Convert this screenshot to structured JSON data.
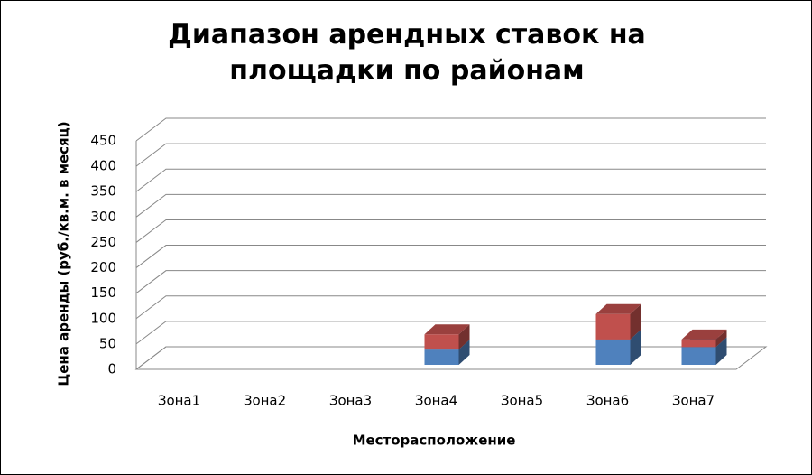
{
  "chart_data": {
    "type": "bar3d_stacked",
    "title": "Диапазон арендных ставок на площадки по районам",
    "x_label": "Месторасположение",
    "y_label": "Цена аренды (руб./кв.м. в месяц)",
    "categories": [
      "Зона1",
      "Зона2",
      "Зона3",
      "Зона4",
      "Зона5",
      "Зона6",
      "Зона7"
    ],
    "series": [
      {
        "color": "#4f81bd",
        "values": [
          null,
          null,
          null,
          30,
          null,
          50,
          35
        ]
      },
      {
        "color": "#c0504d",
        "values": [
          null,
          null,
          null,
          30,
          null,
          50,
          15
        ]
      }
    ],
    "ylim": [
      0,
      450
    ],
    "yticks": [
      0,
      50,
      100,
      150,
      200,
      250,
      300,
      350,
      400,
      450
    ],
    "grid": true
  }
}
